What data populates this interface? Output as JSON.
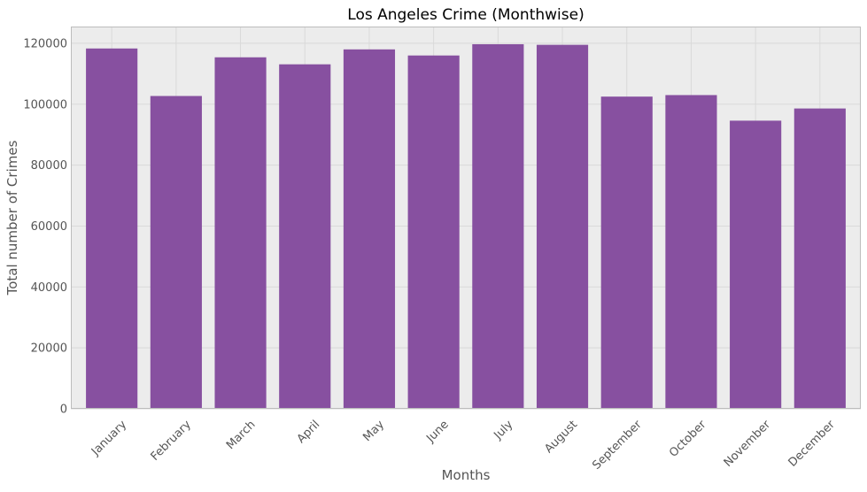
{
  "colors": {
    "plot_background": "#ececec",
    "grid": "#d9d9d9",
    "bar": "#8750a0",
    "frame": "#bcbcbc",
    "text": "#555555",
    "title": "#000000"
  },
  "chart_data": {
    "type": "bar",
    "title": "Los Angeles Crime (Monthwise)",
    "xlabel": "Months",
    "ylabel": "Total number of Crimes",
    "categories": [
      "January",
      "February",
      "March",
      "April",
      "May",
      "June",
      "July",
      "August",
      "September",
      "October",
      "November",
      "December"
    ],
    "values": [
      118300,
      102700,
      115400,
      113100,
      118000,
      116000,
      119700,
      119500,
      102500,
      103000,
      94600,
      98600
    ],
    "ylim": [
      0,
      125500
    ],
    "yticks": [
      0,
      20000,
      40000,
      60000,
      80000,
      100000,
      120000
    ],
    "grid": true,
    "legend": "none"
  }
}
